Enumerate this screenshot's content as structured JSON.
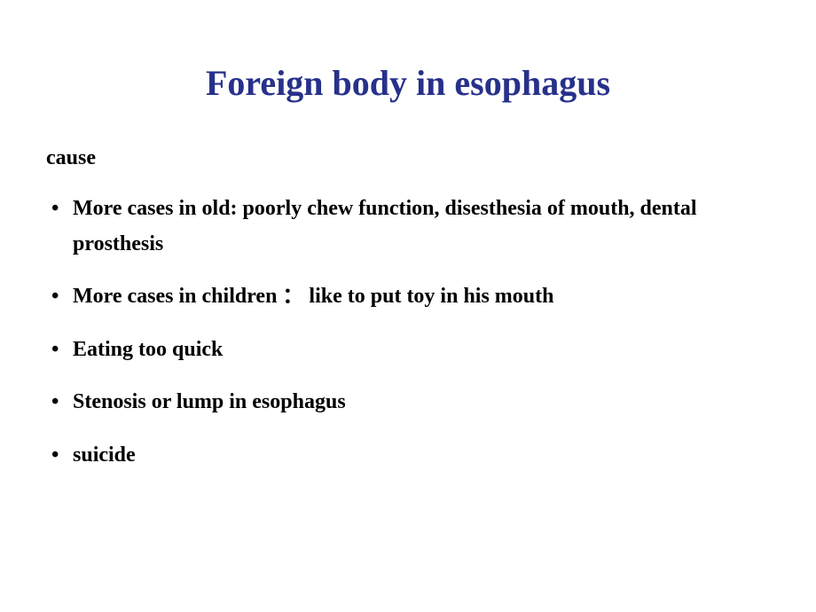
{
  "slide": {
    "title": "Foreign body in esophagus",
    "title_color": "#27318b",
    "title_fontsize": 40,
    "subtitle": "cause",
    "subtitle_color": "#000000",
    "subtitle_fontsize": 24,
    "bullet_fontsize": 24,
    "bullet_color": "#000000",
    "line_height": 1.65,
    "bullets": [
      "More cases in old: poorly chew function, disesthesia of mouth, dental prosthesis",
      "More cases in children ： like to put toy in his mouth",
      "Eating too quick",
      "Stenosis or lump in esophagus",
      "suicide"
    ],
    "background_color": "#ffffff"
  }
}
